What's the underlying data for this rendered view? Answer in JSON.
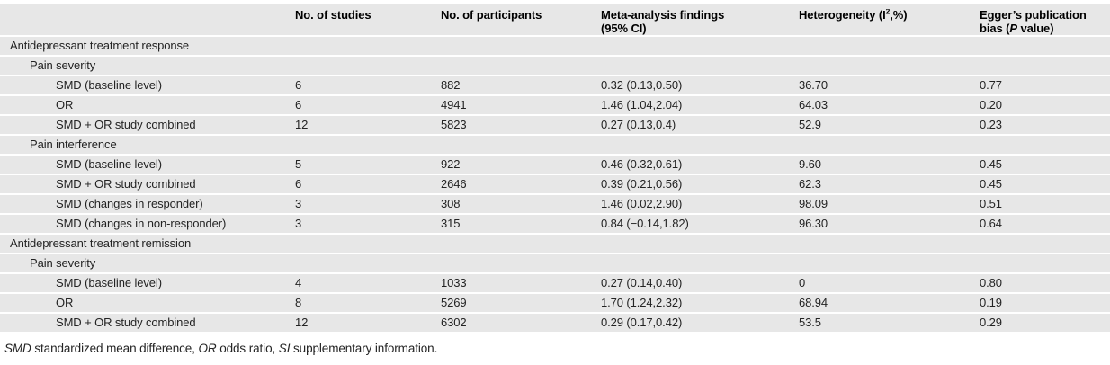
{
  "table": {
    "columns": {
      "studies": "No. of studies",
      "participants": "No. of participants",
      "findings_line1": "Meta-analysis findings",
      "findings_line2": "(95% CI)",
      "heterogeneity_pre": "Heterogeneity (I",
      "heterogeneity_sup": "2",
      "heterogeneity_post": ",%)",
      "egger_line1": "Egger’s publication",
      "egger_line2_pre": "bias (",
      "egger_line2_italic": "P",
      "egger_line2_post": " value)"
    },
    "rows": [
      {
        "label": "Antidepressant treatment response",
        "indent": 0,
        "studies": "",
        "participants": "",
        "findings": "",
        "heterogeneity": "",
        "egger": ""
      },
      {
        "label": "Pain severity",
        "indent": 1,
        "studies": "",
        "participants": "",
        "findings": "",
        "heterogeneity": "",
        "egger": ""
      },
      {
        "label": "SMD (baseline level)",
        "indent": 2,
        "studies": "6",
        "participants": "882",
        "findings": "0.32 (0.13,0.50)",
        "heterogeneity": "36.70",
        "egger": "0.77"
      },
      {
        "label": "OR",
        "indent": 2,
        "studies": "6",
        "participants": "4941",
        "findings": "1.46 (1.04,2.04)",
        "heterogeneity": "64.03",
        "egger": "0.20"
      },
      {
        "label": "SMD + OR study combined",
        "indent": 2,
        "studies": "12",
        "participants": "5823",
        "findings": "0.27 (0.13,0.4)",
        "heterogeneity": "52.9",
        "egger": "0.23"
      },
      {
        "label": "Pain interference",
        "indent": 1,
        "studies": "",
        "participants": "",
        "findings": "",
        "heterogeneity": "",
        "egger": ""
      },
      {
        "label": "SMD (baseline level)",
        "indent": 2,
        "studies": "5",
        "participants": "922",
        "findings": "0.46 (0.32,0.61)",
        "heterogeneity": "9.60",
        "egger": "0.45"
      },
      {
        "label": "SMD + OR study combined",
        "indent": 2,
        "studies": "6",
        "participants": "2646",
        "findings": "0.39 (0.21,0.56)",
        "heterogeneity": "62.3",
        "egger": "0.45"
      },
      {
        "label": "SMD (changes in responder)",
        "indent": 2,
        "studies": "3",
        "participants": "308",
        "findings": "1.46 (0.02,2.90)",
        "heterogeneity": "98.09",
        "egger": "0.51"
      },
      {
        "label": "SMD (changes in non-responder)",
        "indent": 2,
        "studies": "3",
        "participants": "315",
        "findings": "0.84 (−0.14,1.82)",
        "heterogeneity": "96.30",
        "egger": "0.64"
      },
      {
        "label": "Antidepressant treatment remission",
        "indent": 0,
        "studies": "",
        "participants": "",
        "findings": "",
        "heterogeneity": "",
        "egger": ""
      },
      {
        "label": "Pain severity",
        "indent": 1,
        "studies": "",
        "participants": "",
        "findings": "",
        "heterogeneity": "",
        "egger": ""
      },
      {
        "label": "SMD (baseline level)",
        "indent": 2,
        "studies": "4",
        "participants": "1033",
        "findings": "0.27 (0.14,0.40)",
        "heterogeneity": "0",
        "egger": "0.80"
      },
      {
        "label": "OR",
        "indent": 2,
        "studies": "8",
        "participants": "5269",
        "findings": "1.70 (1.24,2.32)",
        "heterogeneity": "68.94",
        "egger": "0.19"
      },
      {
        "label": "SMD + OR study combined",
        "indent": 2,
        "studies": "12",
        "participants": "6302",
        "findings": "0.29 (0.17,0.42)",
        "heterogeneity": "53.5",
        "egger": "0.29"
      }
    ],
    "colors": {
      "row_background": "#e7e7e7",
      "separator": "#ffffff",
      "header_text": "#000000",
      "body_text": "#232323"
    }
  },
  "footnote": {
    "abbr1": "SMD",
    "def1": " standardized mean difference, ",
    "abbr2": "OR",
    "def2": " odds ratio, ",
    "abbr3": "SI",
    "def3": " supplementary information."
  }
}
